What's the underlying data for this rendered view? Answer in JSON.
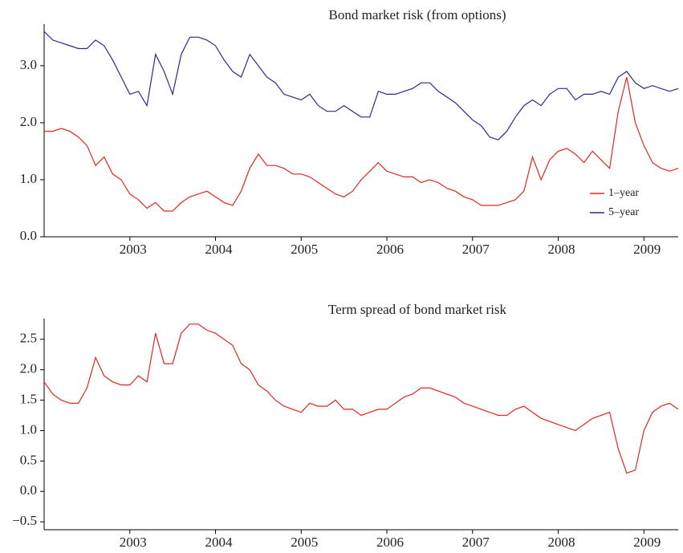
{
  "chart_data": [
    {
      "type": "line",
      "title": "Bond market risk (from options)",
      "x": [
        2002.0,
        2002.1,
        2002.2,
        2002.3,
        2002.4,
        2002.5,
        2002.6,
        2002.7,
        2002.8,
        2002.9,
        2003.0,
        2003.1,
        2003.2,
        2003.3,
        2003.4,
        2003.5,
        2003.6,
        2003.7,
        2003.8,
        2003.9,
        2004.0,
        2004.1,
        2004.2,
        2004.3,
        2004.4,
        2004.5,
        2004.6,
        2004.7,
        2004.8,
        2004.9,
        2005.0,
        2005.1,
        2005.2,
        2005.3,
        2005.4,
        2005.5,
        2005.6,
        2005.7,
        2005.8,
        2005.9,
        2006.0,
        2006.1,
        2006.2,
        2006.3,
        2006.4,
        2006.5,
        2006.6,
        2006.7,
        2006.8,
        2006.9,
        2007.0,
        2007.1,
        2007.2,
        2007.3,
        2007.4,
        2007.5,
        2007.6,
        2007.7,
        2007.8,
        2007.9,
        2008.0,
        2008.1,
        2008.2,
        2008.3,
        2008.4,
        2008.5,
        2008.6,
        2008.7,
        2008.8,
        2008.9,
        2009.0,
        2009.1,
        2009.2,
        2009.3,
        2009.4
      ],
      "series": [
        {
          "name": "1–year",
          "color": "#e3261f",
          "values": [
            1.85,
            1.85,
            1.9,
            1.85,
            1.75,
            1.6,
            1.25,
            1.4,
            1.1,
            1.0,
            0.75,
            0.65,
            0.5,
            0.6,
            0.45,
            0.45,
            0.6,
            0.7,
            0.75,
            0.8,
            0.7,
            0.6,
            0.55,
            0.8,
            1.2,
            1.45,
            1.25,
            1.25,
            1.2,
            1.1,
            1.1,
            1.05,
            0.95,
            0.85,
            0.75,
            0.7,
            0.8,
            1.0,
            1.15,
            1.3,
            1.15,
            1.1,
            1.05,
            1.05,
            0.95,
            1.0,
            0.95,
            0.85,
            0.8,
            0.7,
            0.65,
            0.55,
            0.55,
            0.55,
            0.6,
            0.65,
            0.8,
            1.4,
            1.0,
            1.35,
            1.5,
            1.55,
            1.45,
            1.3,
            1.5,
            1.35,
            1.2,
            2.2,
            2.8,
            2.0,
            1.6,
            1.3,
            1.2,
            1.15,
            1.2
          ]
        },
        {
          "name": "5–year",
          "color": "#2b2a8c",
          "values": [
            3.6,
            3.45,
            3.4,
            3.35,
            3.3,
            3.3,
            3.45,
            3.35,
            3.1,
            2.8,
            2.5,
            2.55,
            2.3,
            3.2,
            2.9,
            2.5,
            3.2,
            3.5,
            3.5,
            3.45,
            3.35,
            3.1,
            2.9,
            2.8,
            3.2,
            3.0,
            2.8,
            2.7,
            2.5,
            2.45,
            2.4,
            2.5,
            2.3,
            2.2,
            2.2,
            2.3,
            2.2,
            2.1,
            2.1,
            2.55,
            2.5,
            2.5,
            2.55,
            2.6,
            2.7,
            2.7,
            2.55,
            2.45,
            2.35,
            2.2,
            2.05,
            1.95,
            1.75,
            1.7,
            1.85,
            2.1,
            2.3,
            2.4,
            2.3,
            2.5,
            2.6,
            2.6,
            2.4,
            2.5,
            2.5,
            2.55,
            2.5,
            2.8,
            2.9,
            2.7,
            2.6,
            2.65,
            2.6,
            2.55,
            2.6
          ]
        }
      ],
      "xlim": [
        2002.0,
        2009.4
      ],
      "xticks": [
        2003,
        2004,
        2005,
        2006,
        2007,
        2008,
        2009
      ],
      "ylim": [
        0,
        3.73
      ],
      "yticks": [
        {
          "value": 0,
          "label": "0.0"
        },
        {
          "value": 1,
          "label": "1.0"
        },
        {
          "value": 2,
          "label": "2.0"
        },
        {
          "value": 3,
          "label": "3.0"
        }
      ],
      "legend": "lower right"
    },
    {
      "type": "line",
      "title": "Term spread of bond market risk",
      "x": [
        2002.0,
        2002.1,
        2002.2,
        2002.3,
        2002.4,
        2002.5,
        2002.6,
        2002.7,
        2002.8,
        2002.9,
        2003.0,
        2003.1,
        2003.2,
        2003.3,
        2003.4,
        2003.5,
        2003.6,
        2003.7,
        2003.8,
        2003.9,
        2004.0,
        2004.1,
        2004.2,
        2004.3,
        2004.4,
        2004.5,
        2004.6,
        2004.7,
        2004.8,
        2004.9,
        2005.0,
        2005.1,
        2005.2,
        2005.3,
        2005.4,
        2005.5,
        2005.6,
        2005.7,
        2005.8,
        2005.9,
        2006.0,
        2006.1,
        2006.2,
        2006.3,
        2006.4,
        2006.5,
        2006.6,
        2006.7,
        2006.8,
        2006.9,
        2007.0,
        2007.1,
        2007.2,
        2007.3,
        2007.4,
        2007.5,
        2007.6,
        2007.7,
        2007.8,
        2007.9,
        2008.0,
        2008.1,
        2008.2,
        2008.3,
        2008.4,
        2008.5,
        2008.6,
        2008.7,
        2008.8,
        2008.9,
        2009.0,
        2009.1,
        2009.2,
        2009.3,
        2009.4
      ],
      "values": [
        1.8,
        1.6,
        1.5,
        1.45,
        1.45,
        1.7,
        2.2,
        1.9,
        1.8,
        1.75,
        1.75,
        1.9,
        1.8,
        2.6,
        2.1,
        2.1,
        2.6,
        2.75,
        2.75,
        2.65,
        2.6,
        2.5,
        2.4,
        2.1,
        2.0,
        1.75,
        1.65,
        1.5,
        1.4,
        1.35,
        1.3,
        1.45,
        1.4,
        1.4,
        1.5,
        1.35,
        1.35,
        1.25,
        1.3,
        1.35,
        1.35,
        1.45,
        1.55,
        1.6,
        1.7,
        1.7,
        1.65,
        1.6,
        1.55,
        1.45,
        1.4,
        1.35,
        1.3,
        1.25,
        1.25,
        1.35,
        1.4,
        1.3,
        1.2,
        1.15,
        1.1,
        1.05,
        1.0,
        1.1,
        1.2,
        1.25,
        1.3,
        0.7,
        0.3,
        0.35,
        1.0,
        1.3,
        1.4,
        1.45,
        1.35
      ],
      "color": "#e3261f",
      "xlim": [
        2002.0,
        2009.4
      ],
      "xticks": [
        2003,
        2004,
        2005,
        2006,
        2007,
        2008,
        2009
      ],
      "ylim": [
        -0.63,
        2.84
      ],
      "yticks": [
        {
          "value": -0.5,
          "label": "−0.5"
        },
        {
          "value": 0,
          "label": "0.0"
        },
        {
          "value": 0.5,
          "label": "0.5"
        },
        {
          "value": 1,
          "label": "1.0"
        },
        {
          "value": 1.5,
          "label": "1.5"
        },
        {
          "value": 2,
          "label": "2.0"
        },
        {
          "value": 2.5,
          "label": "2.5"
        }
      ]
    }
  ]
}
